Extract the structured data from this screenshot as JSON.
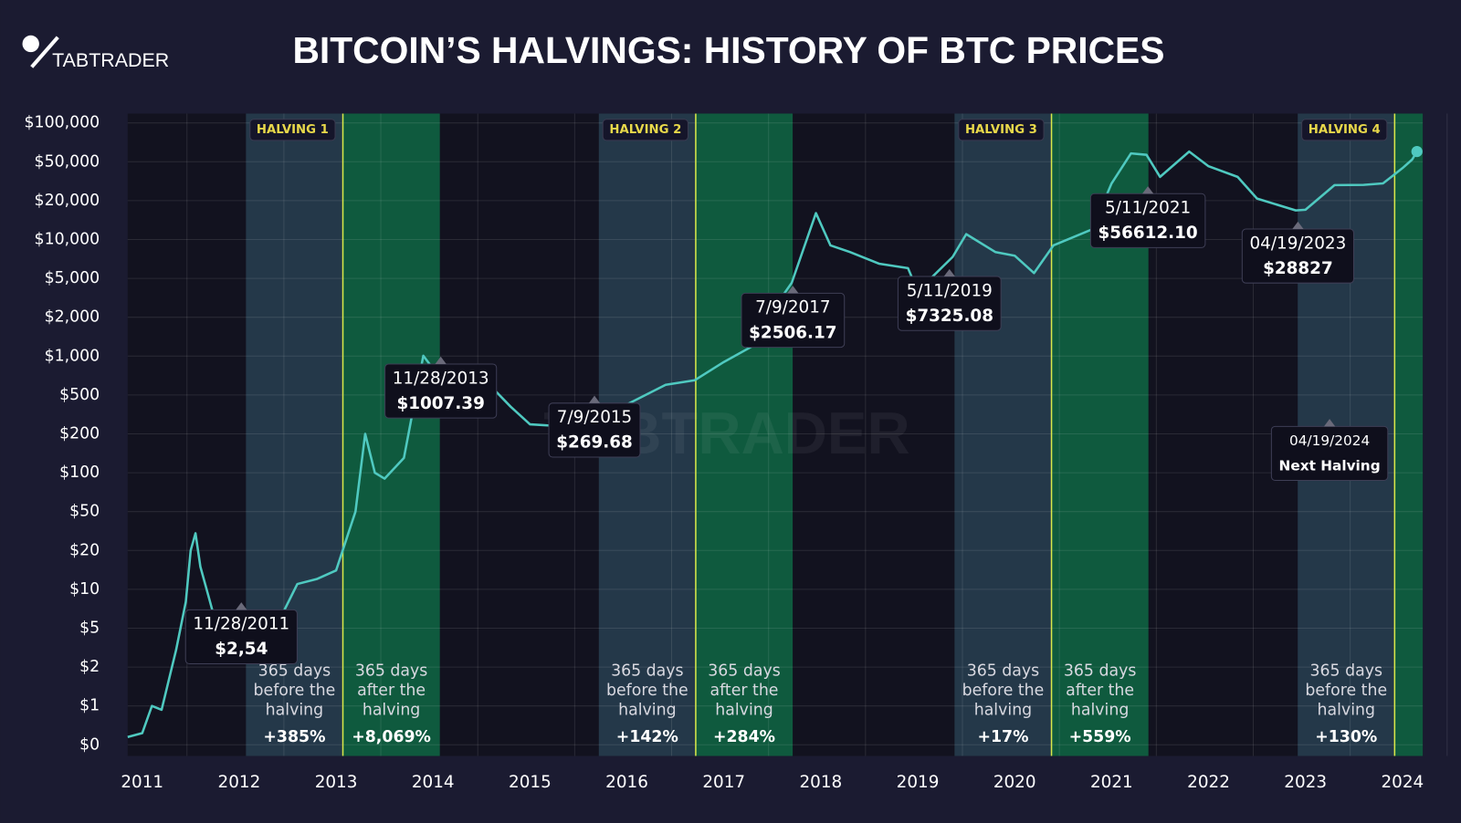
{
  "chart_data": {
    "type": "line",
    "title": "BITCOIN’S HALVINGS: HISTORY OF BTC PRICES",
    "logo": "TABTRADER",
    "watermark": "TABTRADER",
    "log": true,
    "grid": true,
    "color": "#4fc9c0",
    "x": [
      2010.85,
      2011.0,
      2011.1,
      2011.2,
      2011.35,
      2011.45,
      2011.5,
      2011.55,
      2011.6,
      2011.7,
      2011.8,
      2011.9,
      2012.0,
      2012.2,
      2012.4,
      2012.6,
      2012.8,
      2013.0,
      2013.2,
      2013.3,
      2013.4,
      2013.5,
      2013.7,
      2013.9,
      2014.0,
      2014.2,
      2014.4,
      2014.6,
      2014.8,
      2015.0,
      2015.3,
      2015.52,
      2015.8,
      2016.0,
      2016.4,
      2016.7,
      2017.0,
      2017.3,
      2017.52,
      2017.7,
      2017.95,
      2018.1,
      2018.3,
      2018.6,
      2018.9,
      2019.0,
      2019.36,
      2019.5,
      2019.8,
      2020.0,
      2020.2,
      2020.4,
      2020.8,
      2021.0,
      2021.2,
      2021.36,
      2021.5,
      2021.8,
      2022.0,
      2022.3,
      2022.5,
      2022.9,
      2023.0,
      2023.3,
      2023.6,
      2023.8,
      2024.0,
      2024.1,
      2024.15
    ],
    "values": [
      0.2,
      0.3,
      1,
      0.9,
      3,
      8,
      20,
      30,
      15,
      8,
      4,
      2.5,
      5,
      5,
      5.5,
      11,
      12,
      14,
      50,
      200,
      100,
      90,
      130,
      1007,
      800,
      550,
      600,
      580,
      380,
      250,
      240,
      270,
      300,
      400,
      600,
      650,
      900,
      1200,
      2506,
      4500,
      16000,
      9000,
      8000,
      6500,
      6000,
      3700,
      7325,
      11000,
      8000,
      7500,
      5500,
      9000,
      12000,
      30000,
      58000,
      56612,
      35000,
      60000,
      45000,
      35000,
      21000,
      16800,
      17000,
      28827,
      29000,
      30000,
      43000,
      52000,
      60000
    ],
    "xlim": [
      2010.85,
      2024.21
    ],
    "xticks": [
      2011,
      2012,
      2013,
      2014,
      2015,
      2016,
      2017,
      2018,
      2019,
      2020,
      2021,
      2022,
      2023,
      2024
    ],
    "ylim": [
      0,
      100000
    ],
    "yticks": [
      {
        "value": 0,
        "label": "$0"
      },
      {
        "value": 1,
        "label": "$1"
      },
      {
        "value": 2,
        "label": "$2"
      },
      {
        "value": 5,
        "label": "$5"
      },
      {
        "value": 10,
        "label": "$10"
      },
      {
        "value": 20,
        "label": "$20"
      },
      {
        "value": 50,
        "label": "$50"
      },
      {
        "value": 100,
        "label": "$100"
      },
      {
        "value": 200,
        "label": "$200"
      },
      {
        "value": 500,
        "label": "$500"
      },
      {
        "value": 1000,
        "label": "$1,000"
      },
      {
        "value": 2000,
        "label": "$2,000"
      },
      {
        "value": 5000,
        "label": "$5,000"
      },
      {
        "value": 10000,
        "label": "$10,000"
      },
      {
        "value": 20000,
        "label": "$20,000"
      },
      {
        "value": 50000,
        "label": "$50,000"
      },
      {
        "value": 100000,
        "label": "$100,000"
      }
    ],
    "halvings": [
      {
        "label": "HALVING 1",
        "x": 2013.07,
        "before_text": [
          "365 days",
          "before the",
          "halving"
        ],
        "before_change": "+385%",
        "after_text": [
          "365 days",
          "after the",
          "halving"
        ],
        "after_change": "+8,069%"
      },
      {
        "label": "HALVING 2",
        "x": 2016.71,
        "before_text": [
          "365 days",
          "before the",
          "halving"
        ],
        "before_change": "+142%",
        "after_text": [
          "365 days",
          "after the",
          "halving"
        ],
        "after_change": "+284%"
      },
      {
        "label": "HALVING 3",
        "x": 2020.38,
        "before_text": [
          "365 days",
          "before the",
          "halving"
        ],
        "before_change": "+17%",
        "after_text": [
          "365 days",
          "after the",
          "halving"
        ],
        "after_change": "+559%"
      },
      {
        "label": "HALVING 4",
        "x": 2023.92,
        "before_text": [
          "365 days",
          "before the",
          "halving"
        ],
        "before_change": "+130%"
      }
    ],
    "annotations": [
      {
        "date": "11/28/2011",
        "price": "$2,54"
      },
      {
        "date": "11/28/2013",
        "price": "$1007.39"
      },
      {
        "date": "7/9/2015",
        "price": "$269.68"
      },
      {
        "date": "7/9/2017",
        "price": "$2506.17"
      },
      {
        "date": "5/11/2019",
        "price": "$7325.08"
      },
      {
        "date": "5/11/2021",
        "price": "$56612.10"
      },
      {
        "date": "04/19/2023",
        "price": "$28827"
      }
    ],
    "next_halving": {
      "date": "04/19/2024",
      "label": "Next Halving"
    }
  }
}
